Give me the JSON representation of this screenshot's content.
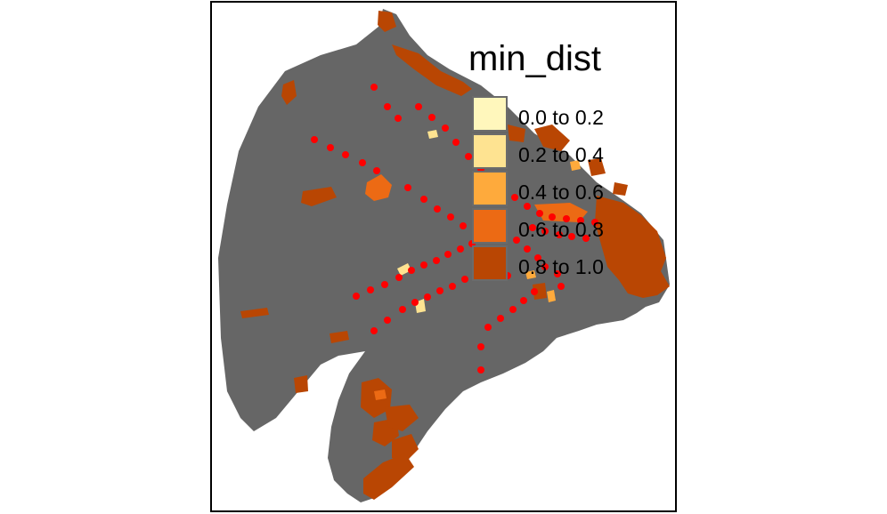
{
  "legend": {
    "title": "min_dist",
    "classes": [
      {
        "label": "0.0 to 0.2",
        "color": "#FFF7BC"
      },
      {
        "label": "0.2 to 0.4",
        "color": "#FEE391"
      },
      {
        "label": "0.4 to 0.6",
        "color": "#FEAA3C"
      },
      {
        "label": "0.6 to 0.8",
        "color": "#EC6A14"
      },
      {
        "label": "0.8 to 1.0",
        "color": "#B94603"
      }
    ]
  },
  "colors": {
    "base_fill": "#666666",
    "station_dot": "#FF0000",
    "frame": "#000000"
  }
}
